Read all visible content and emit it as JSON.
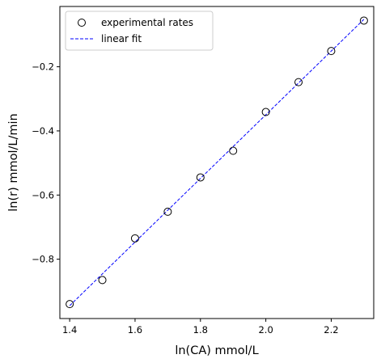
{
  "chart_data": {
    "type": "scatter",
    "title": "",
    "xlabel": "ln(CA) mmol/L",
    "ylabel": "ln(r) mmol/L/min",
    "xlim": [
      1.37,
      2.33
    ],
    "ylim": [
      -0.985,
      -0.012
    ],
    "xticks": [
      1.4,
      1.6,
      1.8,
      2.0,
      2.2
    ],
    "xtick_labels": [
      "1.4",
      "1.6",
      "1.8",
      "2.0",
      "2.2"
    ],
    "yticks": [
      -0.8,
      -0.6,
      -0.4,
      -0.2
    ],
    "ytick_labels": [
      "−0.8",
      "−0.6",
      "−0.4",
      "−0.2"
    ],
    "grid": false,
    "legend_position": "top-left",
    "series": [
      {
        "name": "experimental rates",
        "kind": "scatter",
        "marker": "open-circle",
        "color": "#000000",
        "x": [
          1.4,
          1.5,
          1.6,
          1.7,
          1.8,
          1.9,
          2.0,
          2.1,
          2.2,
          2.3
        ],
        "y": [
          -0.94,
          -0.865,
          -0.735,
          -0.652,
          -0.545,
          -0.462,
          -0.341,
          -0.248,
          -0.151,
          -0.056
        ]
      },
      {
        "name": "linear fit",
        "kind": "line",
        "style": "dashed",
        "color": "#0000ff",
        "x": [
          1.4,
          2.3
        ],
        "y": [
          -0.945,
          -0.052
        ]
      }
    ]
  }
}
